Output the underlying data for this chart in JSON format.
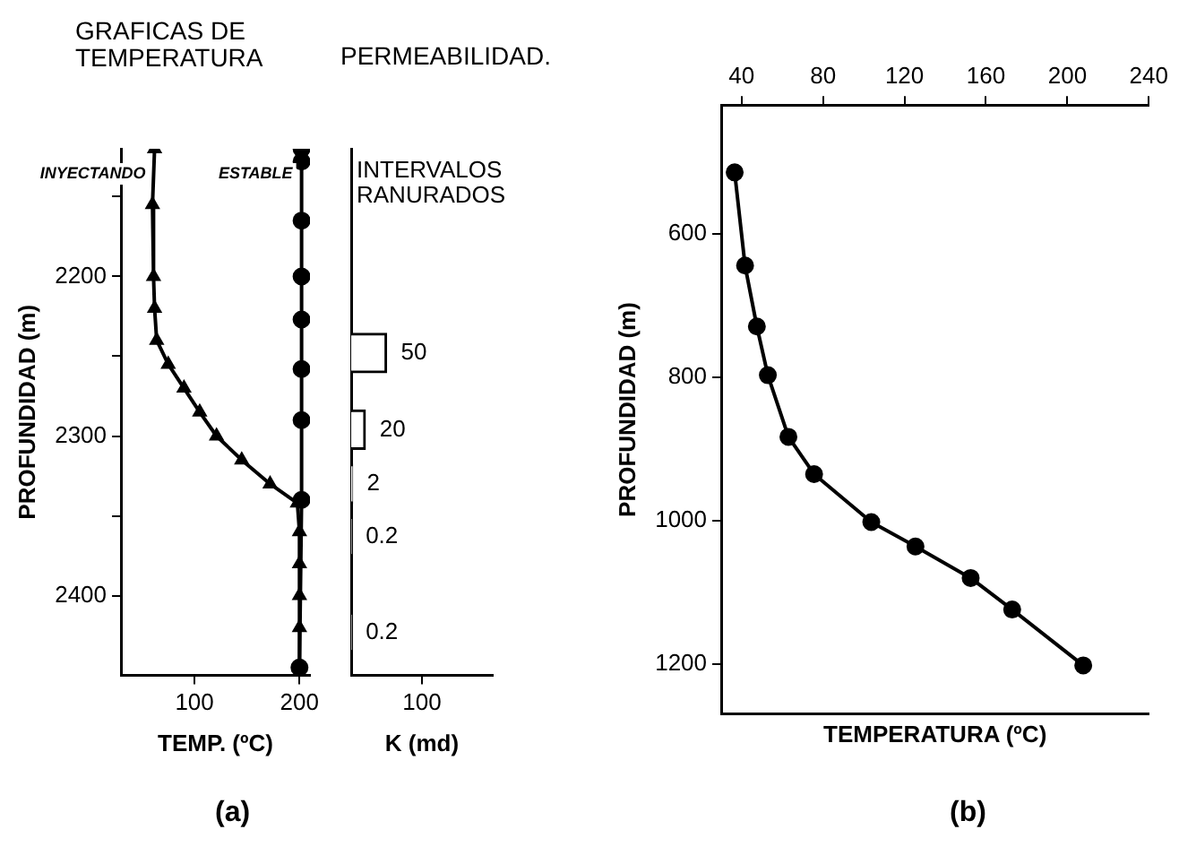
{
  "chart_data": [
    {
      "type": "line",
      "title": "GRAFICAS DE TEMPERATURA",
      "xlabel": "TEMP. (ºC)",
      "ylabel": "PROFUNDIDAD (m)",
      "xlim": [
        30,
        210
      ],
      "xticks": [
        100,
        200
      ],
      "ylim": [
        2450,
        2120
      ],
      "yticks": [
        {
          "value": 2150,
          "label": null
        },
        2200,
        {
          "value": 2250,
          "label": null
        },
        2300,
        {
          "value": 2350,
          "label": null
        },
        2400
      ],
      "line_style": "solid",
      "grid": false,
      "annotations": [
        "(a)"
      ],
      "series": [
        {
          "name": "INYECTANDO",
          "color": "#000000",
          "marker": "triangle",
          "x": [
            62,
            60,
            61,
            62,
            64,
            75,
            90,
            105,
            121,
            145,
            172,
            198,
            200,
            200,
            200,
            200,
            200
          ],
          "values": [
            2120,
            2155,
            2200,
            2220,
            2240,
            2255,
            2270,
            2285,
            2300,
            2315,
            2330,
            2342,
            2360,
            2380,
            2400,
            2420,
            2445
          ]
        },
        {
          "name": "ESTABLE",
          "color": "#000000",
          "marker": "circle",
          "x": [
            202,
            202,
            202,
            202,
            202,
            202,
            202,
            202,
            200
          ],
          "values": [
            2120,
            2128,
            2165,
            2200,
            2227,
            2258,
            2290,
            2340,
            2445
          ]
        }
      ]
    },
    {
      "type": "bar",
      "orientation": "horizontal",
      "title": "PERMEABILIDAD.",
      "subtitle": "INTERVALOS RANURADOS",
      "xlabel": "K (md)",
      "xlim": [
        0,
        200
      ],
      "xticks": [
        100
      ],
      "ylim": [
        2450,
        2120
      ],
      "tick_labels": "x",
      "grid": false,
      "color": "#ffffff",
      "x": [
        2248,
        2296,
        2330,
        2363,
        2423
      ],
      "values": [
        50,
        20,
        2,
        0.2,
        0.2
      ],
      "data_labels": true
    },
    {
      "type": "line",
      "xlabel": "TEMPERATURA (ºC)",
      "ylabel": "PROFUNDIDAD (m)",
      "xlim": [
        30,
        240
      ],
      "xticks": [
        40,
        80,
        120,
        160,
        200,
        240
      ],
      "ylim": [
        1270,
        420
      ],
      "yticks": [
        600,
        800,
        1000,
        1200
      ],
      "line_style": "solid",
      "grid": false,
      "annotations": [
        "(b)"
      ],
      "series": [
        {
          "color": "#000000",
          "marker": "circle",
          "x": [
            36.6,
            41.7,
            47.5,
            52.9,
            63,
            75.6,
            103.7,
            125.4,
            152.5,
            172.9,
            207.8
          ],
          "values": [
            514,
            644,
            729,
            797,
            883,
            935,
            1002,
            1036,
            1080,
            1124,
            1202
          ]
        }
      ]
    }
  ]
}
